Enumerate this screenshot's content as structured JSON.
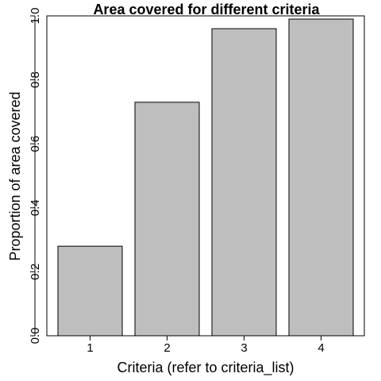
{
  "chart_data": {
    "type": "bar",
    "title": "Area covered for different criteria",
    "xlabel": "Criteria (refer to criteria_list)",
    "ylabel": "Proportion of area covered",
    "categories": [
      "1",
      "2",
      "3",
      "4"
    ],
    "values": [
      0.28,
      0.73,
      0.96,
      0.99
    ],
    "ylim": [
      0,
      1
    ],
    "yticks": [
      "0.0",
      "0.2",
      "0.4",
      "0.6",
      "0.8",
      "1.0"
    ],
    "grid": false,
    "bar_color": "#bebebe",
    "bar_edge_color": "#000000"
  }
}
